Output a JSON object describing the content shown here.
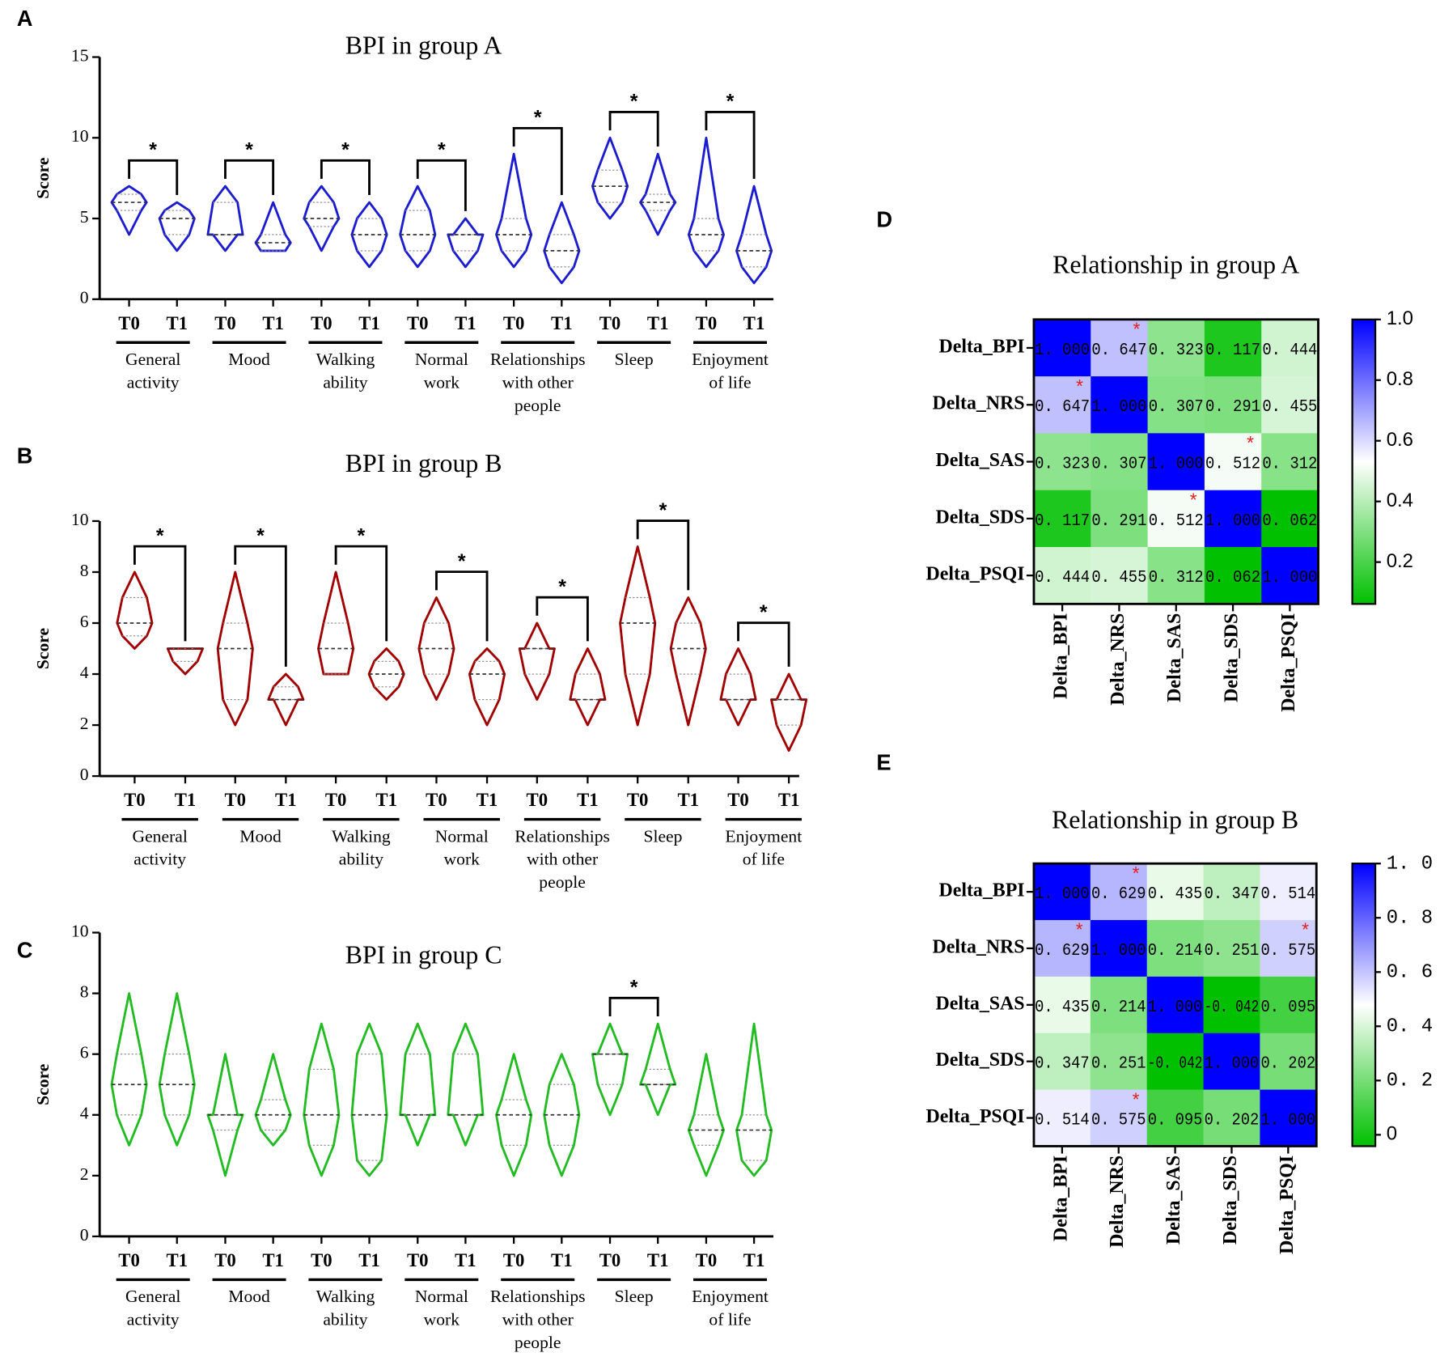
{
  "chart_data": [
    {
      "type": "violin",
      "panel_label": "A",
      "title": "BPI in group A",
      "y_label": "Score",
      "color": "#1c1ccf",
      "ylim": [
        0,
        15
      ],
      "yticks": [
        0,
        5,
        10,
        15
      ],
      "groups": [
        "T0",
        "T1"
      ],
      "categories": [
        [
          "General",
          "activity"
        ],
        [
          "Mood"
        ],
        [
          "Walking",
          "ability"
        ],
        [
          "Normal",
          "work"
        ],
        [
          "Relationships",
          "with other",
          "people"
        ],
        [
          "Sleep"
        ],
        [
          "Enjoyment",
          "of life"
        ]
      ],
      "significance": [
        "*",
        "*",
        "*",
        "*",
        "*",
        "*",
        "*"
      ],
      "series": [
        {
          "name": "T0",
          "values": [
            [
              4,
              5.5,
              6,
              6.5,
              7
            ],
            [
              3,
              4,
              4,
              6,
              7
            ],
            [
              3,
              4.5,
              5,
              6,
              7
            ],
            [
              2,
              3,
              4,
              5.5,
              7
            ],
            [
              2,
              3,
              4,
              5,
              9
            ],
            [
              5,
              6,
              7,
              8,
              10
            ],
            [
              2,
              3,
              4,
              5,
              10
            ]
          ]
        },
        {
          "name": "T1",
          "values": [
            [
              3,
              4,
              5,
              5.5,
              6
            ],
            [
              3,
              3,
              3.5,
              4,
              6
            ],
            [
              2,
              3,
              4,
              5,
              6
            ],
            [
              2,
              3,
              4,
              4,
              5
            ],
            [
              1,
              2,
              3,
              4,
              6
            ],
            [
              4,
              5.5,
              6,
              6.5,
              9
            ],
            [
              1,
              2,
              3,
              4,
              7
            ]
          ]
        }
      ]
    },
    {
      "type": "violin",
      "panel_label": "B",
      "title": "BPI in group B",
      "y_label": "Score",
      "color": "#a00000",
      "ylim": [
        0,
        10
      ],
      "yticks": [
        0,
        2,
        4,
        6,
        8,
        10
      ],
      "groups": [
        "T0",
        "T1"
      ],
      "categories": [
        [
          "General",
          "activity"
        ],
        [
          "Mood"
        ],
        [
          "Walking",
          "ability"
        ],
        [
          "Normal",
          "work"
        ],
        [
          "Relationships",
          "with other",
          "people"
        ],
        [
          "Sleep"
        ],
        [
          "Enjoyment",
          "of life"
        ]
      ],
      "significance": [
        "*",
        "*",
        "*",
        "*",
        "*",
        "*",
        "*"
      ],
      "series": [
        {
          "name": "T0",
          "values": [
            [
              5,
              5.5,
              6,
              7,
              8
            ],
            [
              2,
              3,
              5,
              6,
              8
            ],
            [
              4,
              4,
              5,
              6,
              8
            ],
            [
              3,
              4,
              5,
              6,
              7
            ],
            [
              3,
              4,
              5,
              5,
              6
            ],
            [
              2,
              4,
              6,
              7,
              9
            ],
            [
              2,
              3,
              3,
              4,
              5
            ]
          ]
        },
        {
          "name": "T1",
          "values": [
            [
              4,
              4.5,
              5,
              5,
              5
            ],
            [
              2,
              3,
              3,
              3.5,
              4
            ],
            [
              3,
              3.5,
              4,
              4.5,
              5
            ],
            [
              2,
              3,
              4,
              4.5,
              5
            ],
            [
              2,
              3,
              3,
              4,
              5
            ],
            [
              2,
              4,
              5,
              6,
              7
            ],
            [
              1,
              2,
              3,
              3,
              4
            ]
          ]
        }
      ]
    },
    {
      "type": "violin",
      "panel_label": "C",
      "title": "BPI in group C",
      "y_label": "Score",
      "color": "#22bb22",
      "ylim": [
        0,
        10
      ],
      "yticks": [
        0,
        2,
        4,
        6,
        8,
        10
      ],
      "groups": [
        "T0",
        "T1"
      ],
      "categories": [
        [
          "General",
          "activity"
        ],
        [
          "Mood"
        ],
        [
          "Walking",
          "ability"
        ],
        [
          "Normal",
          "work"
        ],
        [
          "Relationships",
          "with other",
          "people"
        ],
        [
          "Sleep"
        ],
        [
          "Enjoyment",
          "of life"
        ]
      ],
      "significance": [
        null,
        null,
        null,
        null,
        null,
        "*",
        null
      ],
      "series": [
        {
          "name": "T0",
          "values": [
            [
              3,
              4,
              5,
              6,
              8
            ],
            [
              2,
              3.5,
              4,
              4,
              6
            ],
            [
              2,
              3,
              4,
              5.5,
              7
            ],
            [
              3,
              4,
              4,
              6,
              7
            ],
            [
              2,
              3,
              4,
              4.5,
              6
            ],
            [
              4,
              5,
              6,
              6,
              7
            ],
            [
              2,
              3,
              3.5,
              4,
              6
            ]
          ]
        },
        {
          "name": "T1",
          "values": [
            [
              3,
              4,
              5,
              6,
              8
            ],
            [
              3,
              3.5,
              4,
              4.5,
              6
            ],
            [
              2,
              2.5,
              4,
              6,
              7
            ],
            [
              3,
              4,
              4,
              6,
              7
            ],
            [
              2,
              3,
              4,
              5,
              6
            ],
            [
              4,
              5,
              5,
              5.5,
              7
            ],
            [
              2,
              2.5,
              3.5,
              4,
              7
            ]
          ]
        }
      ]
    },
    {
      "type": "heatmap",
      "panel_label": "D",
      "title": "Relationship in group A",
      "annotation": "*",
      "rows": [
        "Delta_BPI",
        "Delta_NRS",
        "Delta_SAS",
        "Delta_SDS",
        "Delta_PSQI"
      ],
      "columns": [
        "Delta_BPI",
        "Delta_NRS",
        "Delta_SAS",
        "Delta_SDS",
        "Delta_PSQI"
      ],
      "values": [
        [
          1,
          0.647,
          0.323,
          0.117,
          0.444
        ],
        [
          0.647,
          1,
          0.307,
          0.291,
          0.455
        ],
        [
          0.323,
          0.307,
          1,
          0.512,
          0.312
        ],
        [
          0.117,
          0.291,
          0.512,
          1,
          0.062
        ],
        [
          0.444,
          0.455,
          0.312,
          0.062,
          1
        ]
      ],
      "value_labels": [
        [
          "1. 000",
          "0. 647",
          "0. 323",
          "0. 117",
          "0. 444"
        ],
        [
          "0. 647",
          "1. 000",
          "0. 307",
          "0. 291",
          "0. 455"
        ],
        [
          "0. 323",
          "0. 307",
          "1. 000",
          "0. 512",
          "0. 312"
        ],
        [
          "0. 117",
          "0. 291",
          "0. 512",
          "1. 000",
          "0. 062"
        ],
        [
          "0. 444",
          "0. 455",
          "0. 312",
          "0. 062",
          "1. 000"
        ]
      ],
      "significant": [
        [
          0,
          1
        ],
        [
          1,
          0
        ],
        [
          2,
          3
        ],
        [
          3,
          2
        ]
      ],
      "clim": [
        0.062,
        1
      ],
      "colormap": [
        "#00c000",
        "#ffffff",
        "#0000ff"
      ],
      "cticks": [
        0.2,
        0.4,
        0.6,
        0.8,
        {
          "value": 1,
          "label": "1.0"
        }
      ]
    },
    {
      "type": "heatmap",
      "panel_label": "E",
      "title": "Relationship in group B",
      "annotation": "*",
      "rows": [
        "Delta_BPI",
        "Delta_NRS",
        "Delta_SAS",
        "Delta_SDS",
        "Delta_PSQI"
      ],
      "columns": [
        "Delta_BPI",
        "Delta_NRS",
        "Delta_SAS",
        "Delta_SDS",
        "Delta_PSQI"
      ],
      "values": [
        [
          1,
          0.629,
          0.435,
          0.347,
          0.514
        ],
        [
          0.629,
          1,
          0.214,
          0.251,
          0.575
        ],
        [
          0.435,
          0.214,
          1,
          -0.042,
          0.095
        ],
        [
          0.347,
          0.251,
          -0.042,
          1,
          0.202
        ],
        [
          0.514,
          0.575,
          0.095,
          0.202,
          1
        ]
      ],
      "value_labels": [
        [
          "1. 000",
          "0. 629",
          "0. 435",
          "0. 347",
          "0. 514"
        ],
        [
          "0. 629",
          "1. 000",
          "0. 214",
          "0. 251",
          "0. 575"
        ],
        [
          "0. 435",
          "0. 214",
          "1. 000",
          "-0. 042",
          "0. 095"
        ],
        [
          "0. 347",
          "0. 251",
          "-0. 042",
          "1. 000",
          "0. 202"
        ],
        [
          "0. 514",
          "0. 575",
          "0. 095",
          "0. 202",
          "1. 000"
        ]
      ],
      "significant": [
        [
          0,
          1
        ],
        [
          1,
          0
        ],
        [
          1,
          4
        ],
        [
          4,
          1
        ]
      ],
      "clim": [
        -0.042,
        1
      ],
      "colormap": [
        "#00c000",
        "#ffffff",
        "#0000ff"
      ],
      "cticks": [
        0,
        {
          "value": 0.2,
          "label": "0. 2"
        },
        {
          "value": 0.4,
          "label": "0. 4"
        },
        {
          "value": 0.6,
          "label": "0. 6"
        },
        {
          "value": 0.8,
          "label": "0. 8"
        },
        {
          "value": 1,
          "label": "1. 0"
        }
      ]
    }
  ]
}
